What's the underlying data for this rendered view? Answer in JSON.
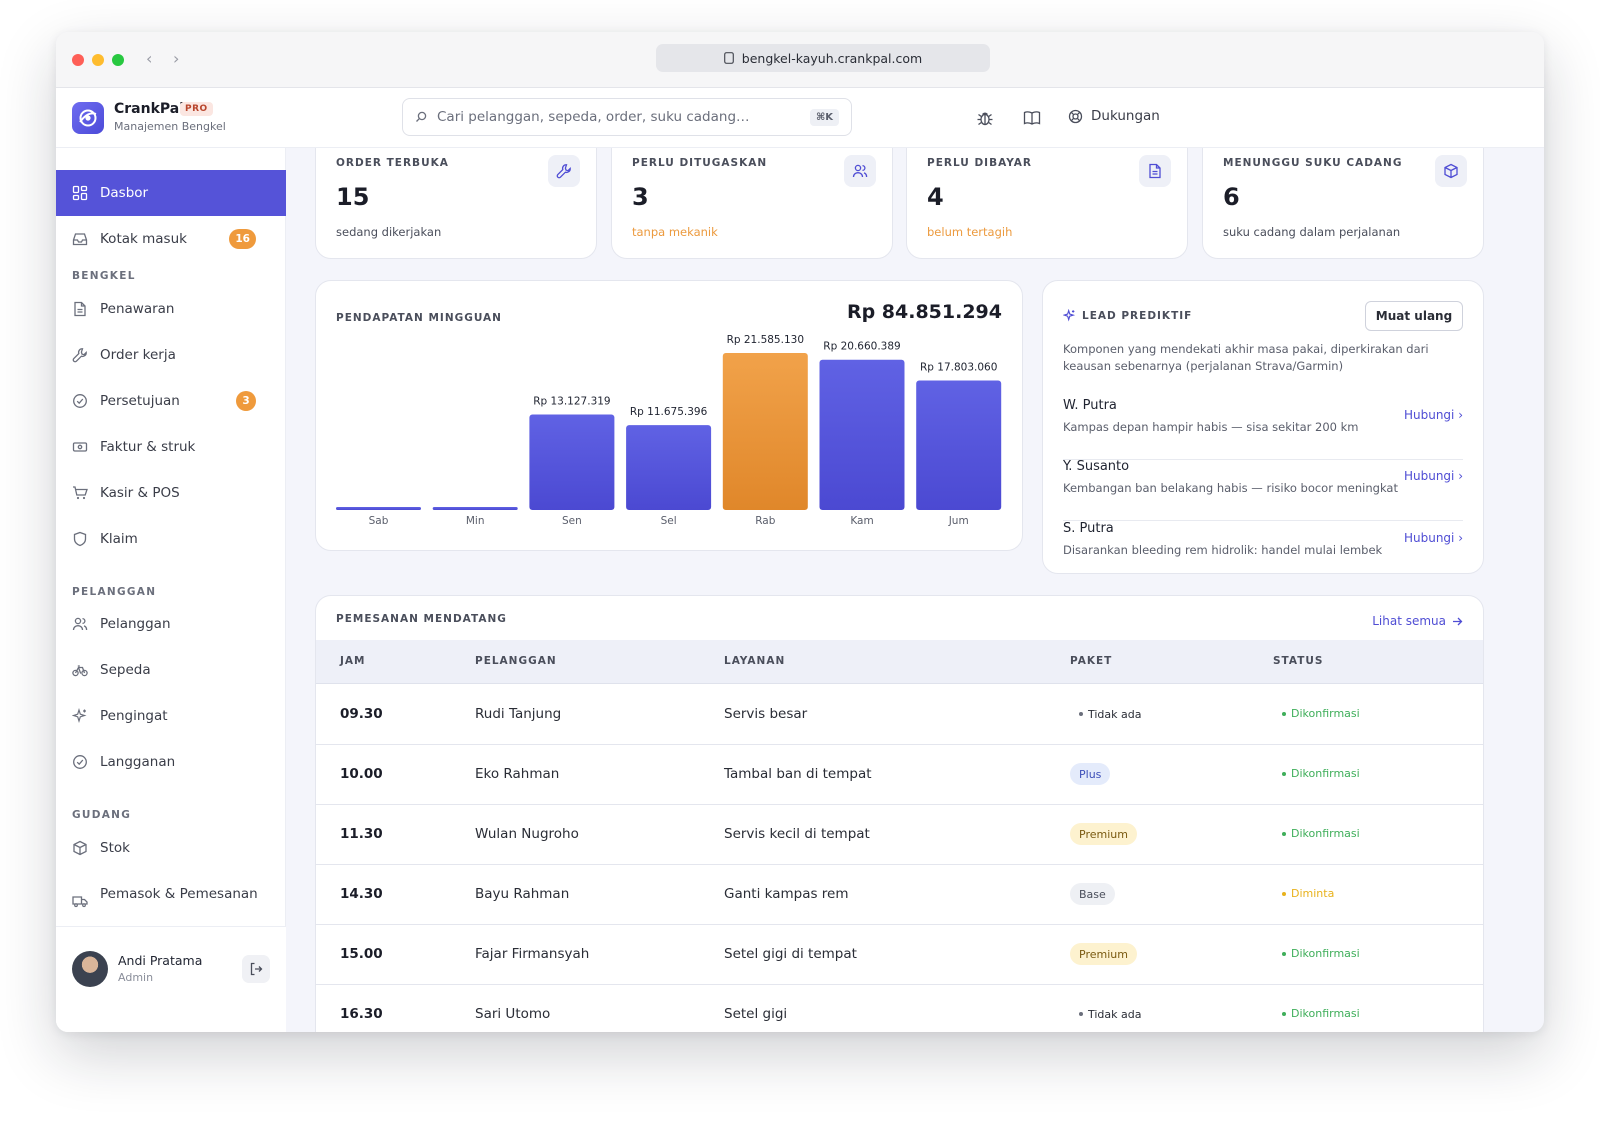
{
  "browser": {
    "url": "bengkel-kayuh.crankpal.com"
  },
  "brand": {
    "name": "CrankPal",
    "tier": "PRO",
    "subtitle": "Manajemen Bengkel"
  },
  "search": {
    "placeholder": "Cari pelanggan, sepeda, order, suku cadang…",
    "shortcut": "⌘K"
  },
  "header": {
    "support_label": "Dukungan"
  },
  "sidebar": {
    "top": [
      {
        "label": "Dasbor",
        "icon": "dashboard-icon",
        "active": true
      },
      {
        "label": "Kotak masuk",
        "icon": "inbox-icon",
        "badge": "16"
      }
    ],
    "sections": [
      {
        "title": "BENGKEL",
        "items": [
          {
            "label": "Penawaran",
            "icon": "document-icon"
          },
          {
            "label": "Order kerja",
            "icon": "wrench-icon"
          },
          {
            "label": "Persetujuan",
            "icon": "check-circle-icon",
            "badge": "3"
          },
          {
            "label": "Faktur & struk",
            "icon": "receipt-icon"
          },
          {
            "label": "Kasir & POS",
            "icon": "cart-icon"
          },
          {
            "label": "Klaim",
            "icon": "shield-icon"
          }
        ]
      },
      {
        "title": "PELANGGAN",
        "items": [
          {
            "label": "Pelanggan",
            "icon": "users-icon"
          },
          {
            "label": "Sepeda",
            "icon": "bicycle-icon"
          },
          {
            "label": "Pengingat",
            "icon": "sparkle-icon"
          },
          {
            "label": "Langganan",
            "icon": "check-circle-icon"
          }
        ]
      },
      {
        "title": "GUDANG",
        "items": [
          {
            "label": "Stok",
            "icon": "box-icon"
          },
          {
            "label": "Pemasok & Pemesanan",
            "icon": "truck-icon"
          }
        ]
      }
    ],
    "user": {
      "name": "Andi Pratama",
      "role": "Admin"
    }
  },
  "stats": [
    {
      "label": "ORDER TERBUKA",
      "value": "15",
      "sub": "sedang dikerjakan",
      "sub_tone": "neutral",
      "icon": "wrench-icon"
    },
    {
      "label": "PERLU DITUGASKAN",
      "value": "3",
      "sub": "tanpa mekanik",
      "sub_tone": "warn",
      "icon": "users-icon"
    },
    {
      "label": "PERLU DIBAYAR",
      "value": "4",
      "sub": "belum tertagih",
      "sub_tone": "warn",
      "icon": "document-icon"
    },
    {
      "label": "MENUNGGU SUKU CADANG",
      "value": "6",
      "sub": "suku cadang dalam perjalanan",
      "sub_tone": "neutral",
      "icon": "box-icon"
    }
  ],
  "revenue": {
    "title": "PENDAPATAN MINGGUAN",
    "total": "Rp 84.851.294"
  },
  "chart_data": {
    "type": "bar",
    "title": "PENDAPATAN MINGGUAN",
    "categories": [
      "Sab",
      "Min",
      "Sen",
      "Sel",
      "Rab",
      "Kam",
      "Jum"
    ],
    "values": [
      0,
      0,
      13127319,
      11675396,
      21585130,
      20660389,
      17803060
    ],
    "data_labels": [
      "",
      "",
      "Rp 13.127.319",
      "Rp 11.675.396",
      "Rp 21.585.130",
      "Rp 20.660.389",
      "Rp 17.803.060"
    ],
    "highlight_index": 4,
    "colors": {
      "default": "#5553d8",
      "highlight": "#ec9a3e"
    },
    "grid": false
  },
  "leads": {
    "title": "LEAD PREDIKTIF",
    "reload_label": "Muat ulang",
    "description": "Komponen yang mendekati akhir masa pakai, diperkirakan dari keausan sebenarnya (perjalanan Strava/Garmin)",
    "items": [
      {
        "name": "W. Putra",
        "note": "Kampas depan hampir habis — sisa sekitar 200 km",
        "action": "Hubungi ›"
      },
      {
        "name": "Y. Susanto",
        "note": "Kembangan ban belakang habis — risiko bocor meningkat",
        "action": "Hubungi ›"
      },
      {
        "name": "S. Putra",
        "note": "Disarankan bleeding rem hidrolik: handel mulai lembek",
        "action": "Hubungi ›"
      }
    ]
  },
  "bookings": {
    "title": "PEMESANAN MENDATANG",
    "see_all": "Lihat semua",
    "columns": [
      "JAM",
      "PELANGGAN",
      "LAYANAN",
      "PAKET",
      "STATUS"
    ],
    "rows": [
      {
        "time": "09.30",
        "customer": "Rudi Tanjung",
        "service": "Servis besar",
        "package": "Tidak ada",
        "package_style": "none",
        "status": "Dikonfirmasi",
        "status_tone": "green"
      },
      {
        "time": "10.00",
        "customer": "Eko Rahman",
        "service": "Tambal ban di tempat",
        "package": "Plus",
        "package_style": "plus",
        "status": "Dikonfirmasi",
        "status_tone": "green"
      },
      {
        "time": "11.30",
        "customer": "Wulan Nugroho",
        "service": "Servis kecil di tempat",
        "package": "Premium",
        "package_style": "premium",
        "status": "Dikonfirmasi",
        "status_tone": "green"
      },
      {
        "time": "14.30",
        "customer": "Bayu Rahman",
        "service": "Ganti kampas rem",
        "package": "Base",
        "package_style": "base",
        "status": "Diminta",
        "status_tone": "yellow"
      },
      {
        "time": "15.00",
        "customer": "Fajar Firmansyah",
        "service": "Setel gigi di tempat",
        "package": "Premium",
        "package_style": "premium",
        "status": "Dikonfirmasi",
        "status_tone": "green"
      },
      {
        "time": "16.30",
        "customer": "Sari Utomo",
        "service": "Setel gigi",
        "package": "Tidak ada",
        "package_style": "none",
        "status": "Dikonfirmasi",
        "status_tone": "green"
      }
    ]
  },
  "colors": {
    "accent": "#5553d8",
    "warn": "#ec9a3e",
    "link": "#4f4dd4",
    "status_green": "#3fae5a",
    "status_yellow": "#e8b21c"
  }
}
